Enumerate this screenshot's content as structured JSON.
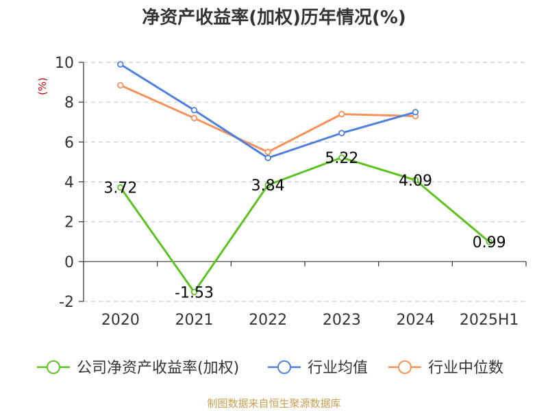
{
  "source": "制图数据来自恒生聚源数据库",
  "chart_data": {
    "type": "line",
    "title": "净资产收益率(加权)历年情况(%)",
    "ylabel": "(%)",
    "xlabel": "",
    "ylim": [
      -2,
      10
    ],
    "yticks": [
      -2,
      0,
      2,
      4,
      6,
      8,
      10
    ],
    "grid": true,
    "legend_position": "bottom",
    "categories": [
      "2020",
      "2021",
      "2022",
      "2023",
      "2024",
      "2025H1"
    ],
    "series": [
      {
        "name": "公司净资产收益率(加权)",
        "color": "#5cc21f",
        "values": [
          3.72,
          -1.53,
          3.84,
          5.22,
          4.09,
          0.99
        ],
        "labels": [
          "3.72",
          "-1.53",
          "3.84",
          "5.22",
          "4.09",
          "0.99"
        ]
      },
      {
        "name": "行业均值",
        "color": "#4e7fdc",
        "values": [
          9.9,
          7.6,
          5.2,
          6.45,
          7.5,
          null
        ]
      },
      {
        "name": "行业中位数",
        "color": "#f5915a",
        "values": [
          8.85,
          7.2,
          5.5,
          7.4,
          7.3,
          null
        ]
      }
    ]
  }
}
